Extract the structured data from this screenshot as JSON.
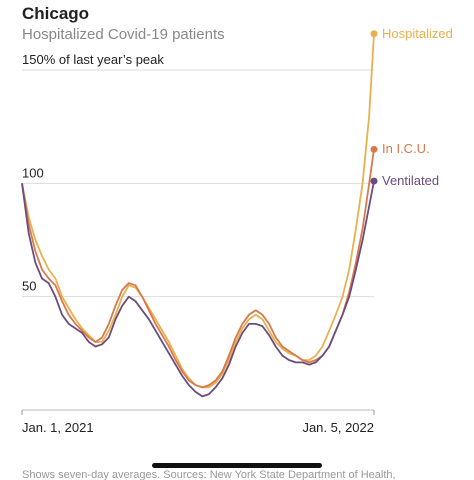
{
  "chart_data": {
    "type": "line",
    "title": "Chicago",
    "subtitle": "Hospitalized Covid-19 patients",
    "note": "Shows seven-day averages. Sources: New York State Department of Health,",
    "x": [
      "2021-01-01",
      "2021-01-08",
      "2021-01-15",
      "2021-01-22",
      "2021-01-29",
      "2021-02-05",
      "2021-02-12",
      "2021-02-19",
      "2021-02-26",
      "2021-03-05",
      "2021-03-12",
      "2021-03-19",
      "2021-03-26",
      "2021-04-02",
      "2021-04-09",
      "2021-04-16",
      "2021-04-23",
      "2021-04-30",
      "2021-05-07",
      "2021-05-14",
      "2021-05-21",
      "2021-05-28",
      "2021-06-04",
      "2021-06-11",
      "2021-06-18",
      "2021-06-25",
      "2021-07-02",
      "2021-07-09",
      "2021-07-16",
      "2021-07-23",
      "2021-07-30",
      "2021-08-06",
      "2021-08-13",
      "2021-08-20",
      "2021-08-27",
      "2021-09-03",
      "2021-09-10",
      "2021-09-17",
      "2021-09-24",
      "2021-10-01",
      "2021-10-08",
      "2021-10-15",
      "2021-10-22",
      "2021-10-29",
      "2021-11-05",
      "2021-11-12",
      "2021-11-19",
      "2021-11-26",
      "2021-12-03",
      "2021-12-10",
      "2021-12-17",
      "2021-12-24",
      "2021-12-31",
      "2022-01-05"
    ],
    "series": [
      {
        "name": "Hospitalized",
        "color": "#e8b04f",
        "values": [
          100,
          85,
          75,
          68,
          62,
          58,
          50,
          45,
          40,
          36,
          33,
          30,
          30,
          35,
          42,
          50,
          55,
          54,
          50,
          45,
          40,
          35,
          30,
          24,
          18,
          14,
          11,
          10,
          10,
          12,
          16,
          22,
          30,
          36,
          40,
          42,
          40,
          35,
          30,
          27,
          25,
          24,
          22,
          22,
          24,
          28,
          35,
          42,
          50,
          62,
          80,
          100,
          130,
          166
        ]
      },
      {
        "name": "In I.C.U.",
        "color": "#d9794a",
        "values": [
          100,
          82,
          70,
          62,
          58,
          55,
          48,
          42,
          38,
          35,
          32,
          30,
          32,
          38,
          46,
          53,
          56,
          55,
          50,
          44,
          38,
          33,
          28,
          22,
          17,
          13,
          11,
          10,
          11,
          13,
          17,
          24,
          32,
          38,
          42,
          44,
          42,
          38,
          32,
          28,
          26,
          24,
          22,
          21,
          22,
          24,
          28,
          35,
          42,
          52,
          65,
          80,
          100,
          115
        ]
      },
      {
        "name": "Ventilated",
        "color": "#6b4c7e",
        "values": [
          100,
          78,
          65,
          58,
          56,
          50,
          42,
          38,
          36,
          34,
          30,
          28,
          29,
          32,
          40,
          46,
          50,
          48,
          44,
          40,
          35,
          30,
          25,
          20,
          15,
          11,
          8,
          6,
          7,
          10,
          14,
          20,
          28,
          34,
          38,
          38,
          37,
          33,
          28,
          24,
          22,
          21,
          21,
          20,
          21,
          24,
          28,
          35,
          42,
          50,
          62,
          75,
          90,
          101
        ]
      }
    ],
    "xticks": [
      {
        "value": "2021-01-01",
        "label": "Jan. 1, 2021"
      },
      {
        "value": "2022-01-05",
        "label": "Jan. 5, 2022"
      }
    ],
    "ylim": [
      0,
      170
    ],
    "yticks": [
      50,
      100,
      {
        "value": 150,
        "label": "150% of last year’s peak"
      }
    ],
    "grid": true
  }
}
